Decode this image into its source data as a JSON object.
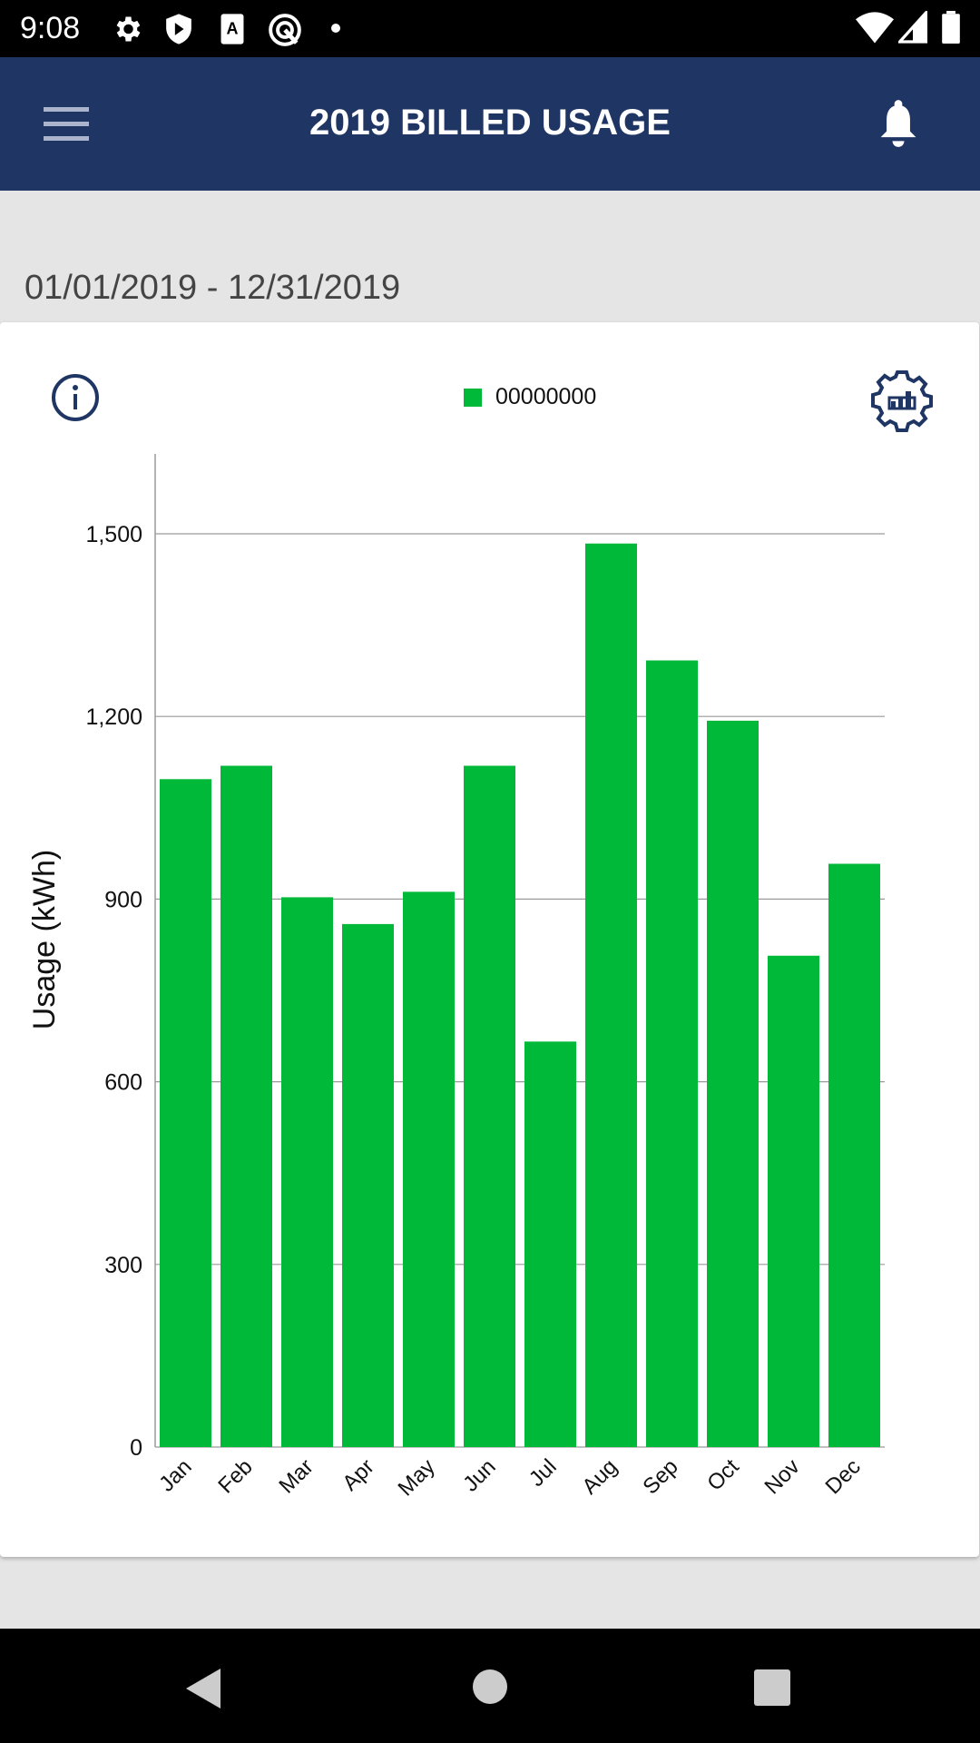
{
  "status_bar": {
    "time": "9:08"
  },
  "header": {
    "title": "2019 BILLED USAGE"
  },
  "date_range": "01/01/2019 - 12/31/2019",
  "colors": {
    "toolbar": "#1f3563",
    "bar": "#00b938",
    "icon": "#1f3563"
  },
  "chart_data": {
    "type": "bar",
    "title": "",
    "xlabel": "",
    "ylabel": "Usage (kWh)",
    "ylim": [
      0,
      1650
    ],
    "yticks": [
      0,
      300,
      600,
      900,
      1200,
      1500
    ],
    "ytick_labels": [
      "0",
      "300",
      "600",
      "900",
      "1,200",
      "1,500"
    ],
    "grid": true,
    "legend": "top-center",
    "categories": [
      "Jan",
      "Feb",
      "Mar",
      "Apr",
      "May",
      "Jun",
      "Jul",
      "Aug",
      "Sep",
      "Oct",
      "Nov",
      "Dec"
    ],
    "series": [
      {
        "name": "00000000",
        "values": [
          1097,
          1119,
          903,
          859,
          912,
          1119,
          666,
          1484,
          1292,
          1193,
          807,
          958
        ]
      }
    ]
  }
}
